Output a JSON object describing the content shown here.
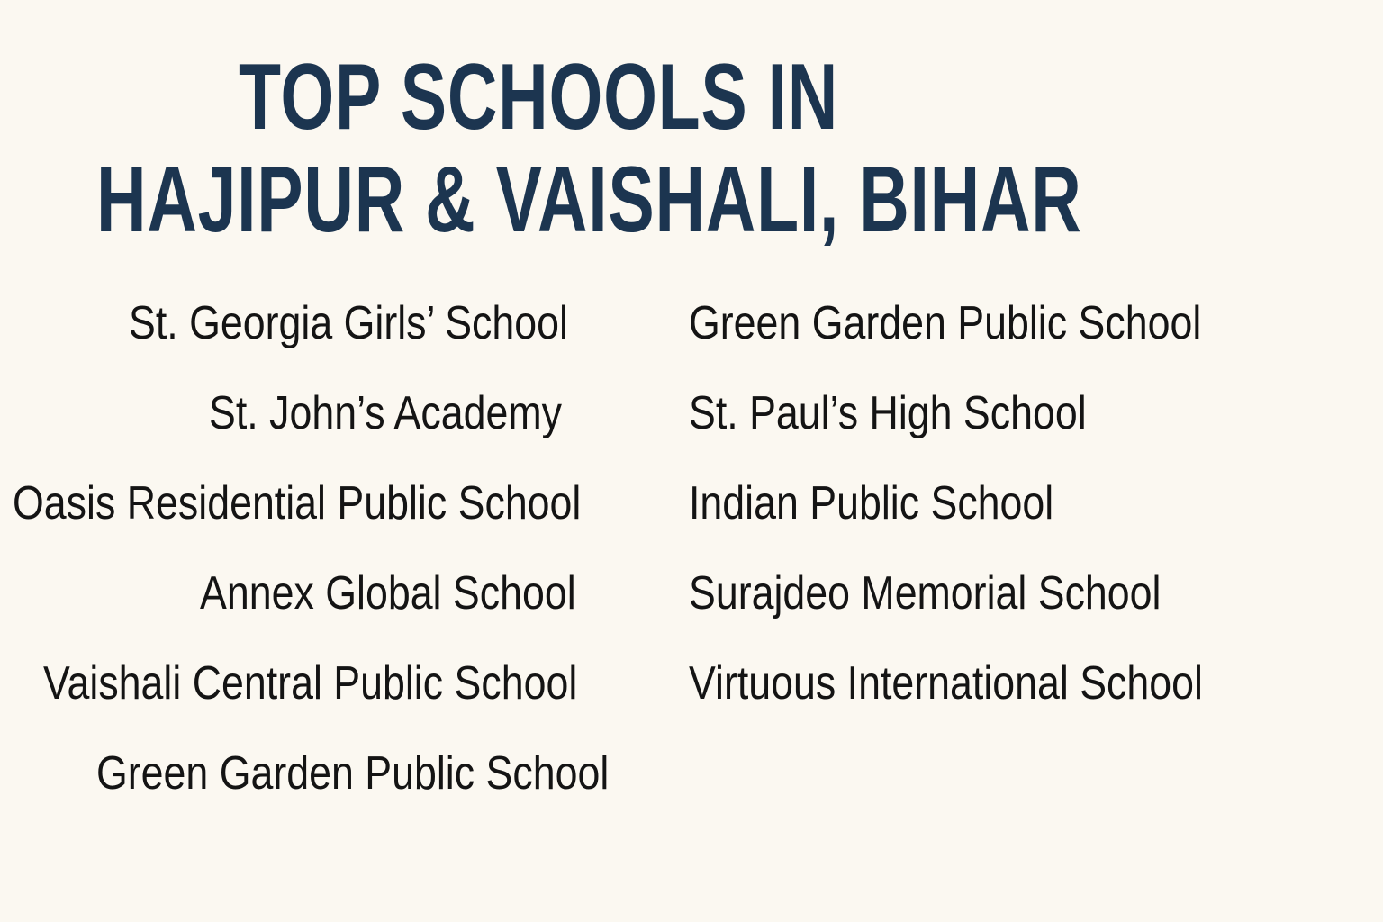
{
  "title": {
    "line1": "TOP SCHOOLS IN",
    "line2": "HAJIPUR & VAISHALI, BIHAR"
  },
  "left_column": [
    "St. Georgia Girls’ School",
    "St. John’s Academy",
    "Oasis Residential Public School",
    "Annex Global School",
    "Vaishali Central Public School",
    "Green Garden Public School"
  ],
  "right_column": [
    "Green Garden Public School",
    "St. Paul’s High School",
    "Indian Public School",
    "Surajdeo Memorial School",
    "Virtuous International School"
  ],
  "colors": {
    "background": "#fbf8f1",
    "title": "#1c3550",
    "text": "#141414"
  }
}
